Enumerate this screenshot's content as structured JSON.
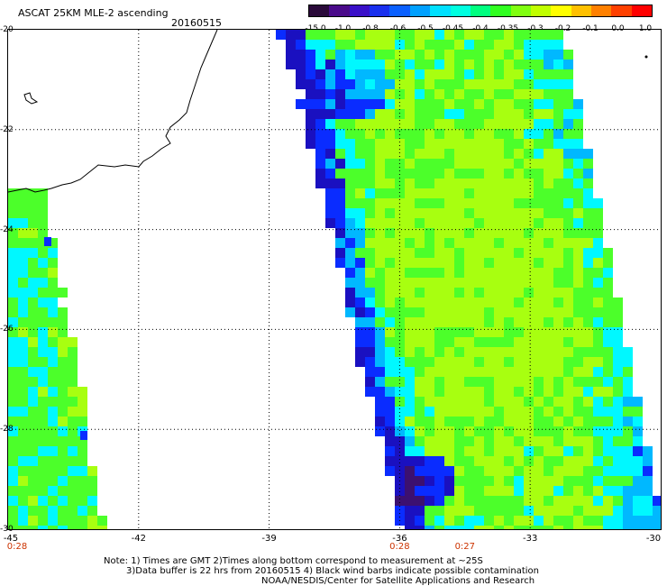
{
  "header": {
    "title": "ASCAT 25KM MLE-2 ascending",
    "date": "20160515"
  },
  "colorbar": {
    "labels": [
      "-15.0",
      "-1.0",
      "-0.8",
      "-0.6",
      "-0.5",
      "-0.45",
      "-0.4",
      "-0.35",
      "-0.3",
      "-0.2",
      "-0.1",
      "0.0",
      "1.0"
    ],
    "colors": [
      "#2a0a3a",
      "#4a0a8a",
      "#3a10c8",
      "#1a30ee",
      "#0a60ff",
      "#00a0ff",
      "#00e0ff",
      "#00ffe0",
      "#00ff80",
      "#30ff20",
      "#80ff10",
      "#c0ff00",
      "#ffff00",
      "#ffc000",
      "#ff8000",
      "#ff4000",
      "#ff0000"
    ]
  },
  "map": {
    "lat_labels": [
      "-20",
      "-22",
      "-24",
      "-26",
      "-28",
      "-30"
    ],
    "lon_labels": [
      "-45",
      "-42",
      "-39",
      "-36",
      "-33",
      "-30"
    ],
    "time_labels": [
      {
        "text": "0:28",
        "lon": -45
      },
      {
        "text": "0:28",
        "lon": -36
      },
      {
        "text": "0:27",
        "lon": -34.5
      }
    ],
    "colors": {
      "ocean_green": "#4cff2a",
      "yellow_green": "#a8ff10",
      "cyan": "#00f8ff",
      "sky": "#00b8ff",
      "blue": "#0a2cff",
      "deep_blue": "#1a10c0",
      "purple": "#3c1070"
    }
  },
  "notes": {
    "line1": "Note: 1) Times are GMT 2)Times along bottom correspond to measurement at ~25S",
    "line2": "3)Data buffer is 22 hrs from 20160515 4) Black wind barbs indicate possible contamination",
    "line3": "NOAA/NESDIS/Center for Satellite Applications and Research"
  }
}
